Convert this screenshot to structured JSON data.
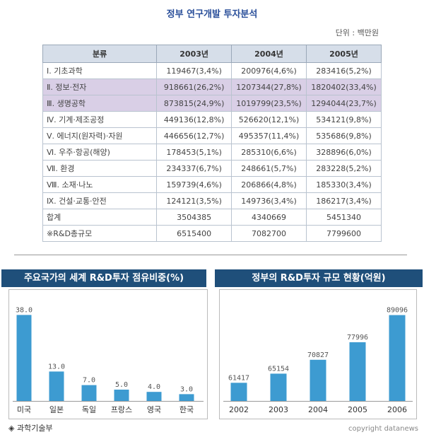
{
  "title": "정부 연구개발 투자분석",
  "unit": "단위 : 백만원",
  "table": {
    "headers": [
      "분류",
      "2003년",
      "2004년",
      "2005년"
    ],
    "rows": [
      {
        "label": "Ⅰ. 기초과학",
        "v2003": "119467(3,4%)",
        "v2004": "200976(4,6%)",
        "v2005": "283416(5,2%)",
        "highlight": false
      },
      {
        "label": "Ⅱ. 정보·전자",
        "v2003": "918661(26,2%)",
        "v2004": "1207344(27,8%)",
        "v2005": "1820402(33,4%)",
        "highlight": true
      },
      {
        "label": "Ⅲ. 생명공학",
        "v2003": "873815(24,9%)",
        "v2004": "1019799(23,5%)",
        "v2005": "1294044(23,7%)",
        "highlight": true
      },
      {
        "label": "Ⅳ. 기계·제조공정",
        "v2003": "449136(12,8%)",
        "v2004": "526620(12,1%)",
        "v2005": "534121(9,8%)",
        "highlight": false
      },
      {
        "label": "Ⅴ. 에너지(원자력)·자원",
        "v2003": "446656(12,7%)",
        "v2004": "495357(11,4%)",
        "v2005": "535686(9,8%)",
        "highlight": false
      },
      {
        "label": "Ⅵ. 우주·항공(해양)",
        "v2003": "178453(5,1%)",
        "v2004": "285310(6,6%)",
        "v2005": "328896(6,0%)",
        "highlight": false
      },
      {
        "label": "Ⅶ. 환경",
        "v2003": "234337(6,7%)",
        "v2004": "248661(5,7%)",
        "v2005": "283228(5,2%)",
        "highlight": false
      },
      {
        "label": "Ⅷ. 소재·나노",
        "v2003": "159739(4,6%)",
        "v2004": "206866(4,8%)",
        "v2005": "185330(3,4%)",
        "highlight": false
      },
      {
        "label": "Ⅸ. 건설·교통·안전",
        "v2003": "124121(3,5%)",
        "v2004": "149736(3,4%)",
        "v2005": "186217(3,4%)",
        "highlight": false
      },
      {
        "label": "합계",
        "v2003": "3504385",
        "v2004": "4340669",
        "v2005": "5451340",
        "highlight": false
      },
      {
        "label": "※R&D총규모",
        "v2003": "6515400",
        "v2004": "7082700",
        "v2005": "7799600",
        "highlight": false
      }
    ]
  },
  "colors": {
    "header_bg": "#1f4f7a",
    "bar": "#3d9bd1",
    "highlight_row": "#d9cfe6",
    "title": "#2a4f9a"
  },
  "chart_data": [
    {
      "type": "bar",
      "title": "주요국가의 세계 R&D투자 점유비중(%)",
      "categories": [
        "미국",
        "일본",
        "독일",
        "프랑스",
        "영국",
        "한국"
      ],
      "values": [
        38.0,
        13.0,
        7.0,
        5.0,
        4.0,
        3.0
      ],
      "value_labels": [
        "38.0",
        "13.0",
        "7.0",
        "5.0",
        "4.0",
        "3.0"
      ],
      "ylim": [
        0,
        40
      ],
      "grid": false
    },
    {
      "type": "bar",
      "title": "정부의 R&D투자 규모 현황(억원)",
      "categories": [
        "2002",
        "2003",
        "2004",
        "2005",
        "2006"
      ],
      "values": [
        61417,
        65154,
        70827,
        77996,
        89096
      ],
      "value_labels": [
        "61417",
        "65154",
        "70827",
        "77996",
        "89096"
      ],
      "ylim": [
        54000,
        91000
      ],
      "grid": false
    }
  ],
  "footer": {
    "source": "◈ 과학기술부",
    "copyright": "copyright datanews"
  }
}
